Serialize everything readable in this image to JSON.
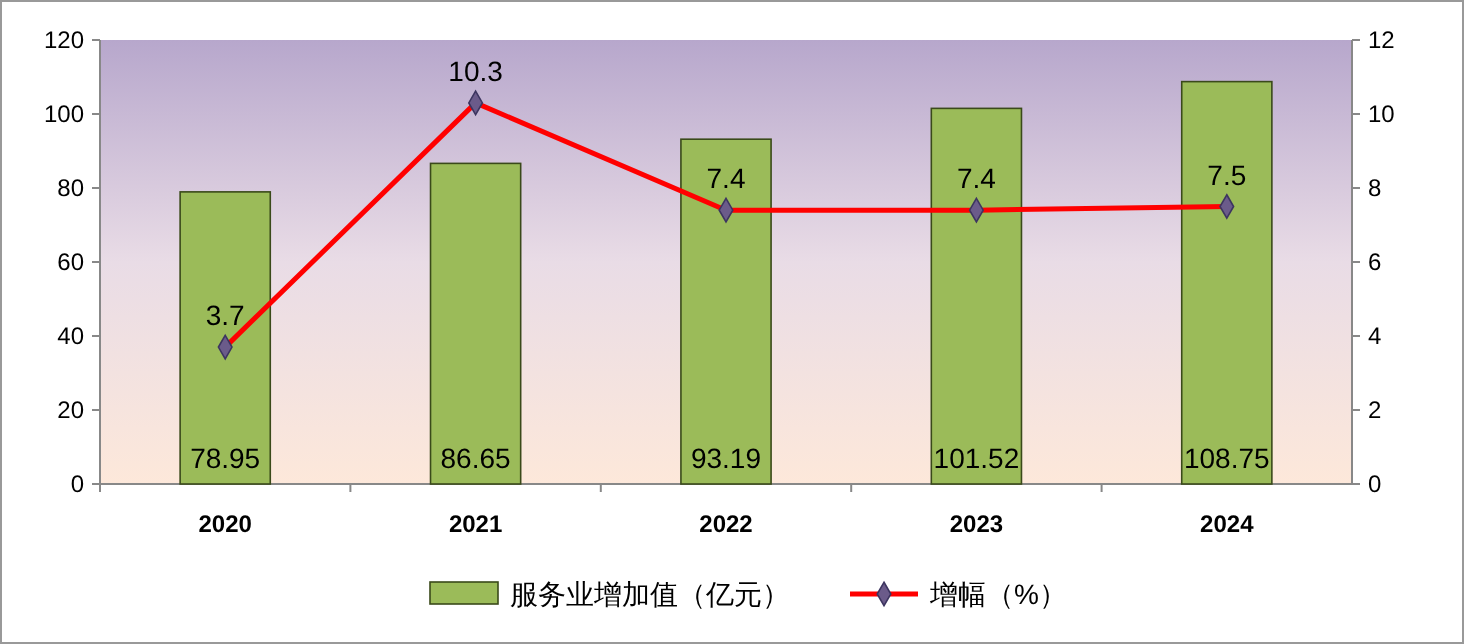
{
  "chart_data": {
    "type": "bar",
    "categories": [
      "2020",
      "2021",
      "2022",
      "2023",
      "2024"
    ],
    "series": [
      {
        "name": "服务业增加值（亿元）",
        "color": "#9bbb59",
        "values": [
          78.95,
          86.65,
          93.19,
          101.52,
          108.75
        ]
      },
      {
        "name": "增幅（%）",
        "type": "line",
        "axis": "y2",
        "color": "#ff0000",
        "values": [
          3.7,
          10.3,
          7.4,
          7.4,
          7.5
        ]
      }
    ],
    "ylim": [
      0,
      120
    ],
    "yticks": [
      0,
      20,
      40,
      60,
      80,
      100,
      120
    ],
    "y2lim": [
      0,
      12
    ],
    "y2ticks": [
      0,
      2,
      4,
      6,
      8,
      10,
      12
    ],
    "data_labels": true,
    "legend": "bottom",
    "marker": "diamond",
    "grid": false
  }
}
